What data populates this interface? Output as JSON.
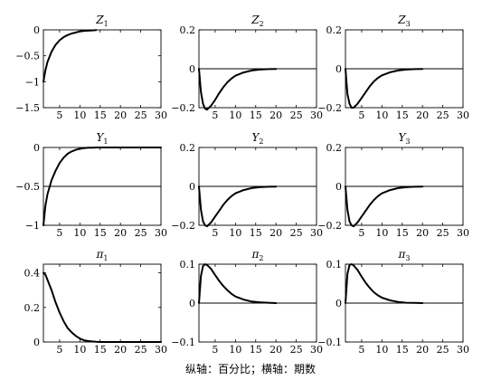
{
  "caption": "纵轴：百分比；横轴：期数",
  "chart_data": [
    {
      "type": "line",
      "title": "Z",
      "title_sub": "1",
      "xlim": [
        1,
        30
      ],
      "ylim": [
        -1.5,
        0
      ],
      "xticks": [
        5,
        10,
        15,
        20,
        25,
        30
      ],
      "yticks": [
        0,
        -0.5,
        -1,
        -1.5
      ],
      "xtick_labels": [
        "5",
        "10",
        "15",
        "20",
        "25",
        "30"
      ],
      "ytick_labels": [
        "0",
        "−0.5",
        "−1",
        "−1.5"
      ],
      "zero_line": false,
      "series": [
        {
          "x": [
            1,
            1.5,
            2,
            3,
            4,
            5,
            6,
            7,
            8,
            9,
            10,
            11,
            12,
            13,
            14
          ],
          "y": [
            -1.0,
            -0.78,
            -0.62,
            -0.42,
            -0.29,
            -0.2,
            -0.14,
            -0.1,
            -0.07,
            -0.05,
            -0.03,
            -0.02,
            -0.015,
            -0.01,
            -0.005
          ]
        }
      ]
    },
    {
      "type": "line",
      "title": "Z",
      "title_sub": "2",
      "xlim": [
        1,
        30
      ],
      "ylim": [
        -0.2,
        0.2
      ],
      "xticks": [
        5,
        10,
        15,
        20,
        25,
        30
      ],
      "yticks": [
        0.2,
        0,
        -0.2
      ],
      "xtick_labels": [
        "5",
        "10",
        "15",
        "20",
        "25",
        "30"
      ],
      "ytick_labels": [
        "0.2",
        "0",
        "−0.2"
      ],
      "zero_line": true,
      "series": [
        {
          "x": [
            1,
            1.5,
            2,
            2.5,
            3,
            4,
            5,
            6,
            7,
            8,
            9,
            10,
            12,
            14,
            16,
            18,
            20
          ],
          "y": [
            0,
            -0.12,
            -0.18,
            -0.205,
            -0.21,
            -0.19,
            -0.16,
            -0.125,
            -0.095,
            -0.07,
            -0.05,
            -0.036,
            -0.019,
            -0.009,
            -0.004,
            -0.002,
            -0.001
          ]
        }
      ]
    },
    {
      "type": "line",
      "title": "Z",
      "title_sub": "3",
      "xlim": [
        1,
        30
      ],
      "ylim": [
        -0.2,
        0.2
      ],
      "xticks": [
        5,
        10,
        15,
        20,
        25,
        30
      ],
      "yticks": [
        0.2,
        0,
        -0.2
      ],
      "xtick_labels": [
        "5",
        "10",
        "15",
        "20",
        "25",
        "30"
      ],
      "ytick_labels": [
        "0.2",
        "0",
        "−0.2"
      ],
      "zero_line": true,
      "series": [
        {
          "x": [
            1,
            1.5,
            2,
            2.5,
            3,
            4,
            5,
            6,
            7,
            8,
            9,
            10,
            12,
            14,
            16,
            18,
            20
          ],
          "y": [
            0,
            -0.13,
            -0.18,
            -0.2,
            -0.2,
            -0.18,
            -0.15,
            -0.12,
            -0.09,
            -0.065,
            -0.047,
            -0.034,
            -0.018,
            -0.009,
            -0.004,
            -0.002,
            -0.001
          ]
        }
      ]
    },
    {
      "type": "line",
      "title": "Y",
      "title_sub": "1",
      "xlim": [
        1,
        30
      ],
      "ylim": [
        -1,
        0
      ],
      "xticks": [
        5,
        10,
        15,
        20,
        25,
        30
      ],
      "yticks": [
        0,
        -0.5,
        -1
      ],
      "xtick_labels": [
        "5",
        "10",
        "15",
        "20",
        "25",
        "30"
      ],
      "ytick_labels": [
        "0",
        "−0.5",
        "−1"
      ],
      "zero_line": false,
      "ref_line": -0.5,
      "series": [
        {
          "x": [
            1,
            1.5,
            2,
            3,
            4,
            5,
            6,
            7,
            8,
            9,
            10,
            11,
            12,
            13,
            14,
            30
          ],
          "y": [
            -1.0,
            -0.75,
            -0.6,
            -0.42,
            -0.3,
            -0.2,
            -0.13,
            -0.08,
            -0.05,
            -0.03,
            -0.015,
            -0.008,
            -0.004,
            -0.002,
            0,
            0
          ]
        }
      ]
    },
    {
      "type": "line",
      "title": "Y",
      "title_sub": "2",
      "xlim": [
        1,
        30
      ],
      "ylim": [
        -0.2,
        0.2
      ],
      "xticks": [
        5,
        10,
        15,
        20,
        25,
        30
      ],
      "yticks": [
        0.2,
        0,
        -0.2
      ],
      "xtick_labels": [
        "5",
        "10",
        "15",
        "20",
        "25",
        "30"
      ],
      "ytick_labels": [
        "0.2",
        "0",
        "−0.2"
      ],
      "zero_line": true,
      "series": [
        {
          "x": [
            1,
            1.5,
            2,
            2.5,
            3,
            4,
            5,
            6,
            7,
            8,
            9,
            10,
            12,
            14,
            16,
            18,
            20
          ],
          "y": [
            0,
            -0.12,
            -0.18,
            -0.2,
            -0.205,
            -0.185,
            -0.155,
            -0.125,
            -0.095,
            -0.07,
            -0.05,
            -0.036,
            -0.019,
            -0.009,
            -0.004,
            -0.002,
            -0.001
          ]
        }
      ]
    },
    {
      "type": "line",
      "title": "Y",
      "title_sub": "3",
      "xlim": [
        1,
        30
      ],
      "ylim": [
        -0.2,
        0.2
      ],
      "xticks": [
        5,
        10,
        15,
        20,
        25,
        30
      ],
      "yticks": [
        0.2,
        0,
        -0.2
      ],
      "xtick_labels": [
        "5",
        "10",
        "15",
        "20",
        "25",
        "30"
      ],
      "ytick_labels": [
        "0.2",
        "0",
        "−0.2"
      ],
      "zero_line": true,
      "series": [
        {
          "x": [
            1,
            1.5,
            2,
            2.5,
            3,
            4,
            5,
            6,
            7,
            8,
            9,
            10,
            12,
            14,
            16,
            18,
            20
          ],
          "y": [
            0,
            -0.12,
            -0.18,
            -0.2,
            -0.205,
            -0.185,
            -0.155,
            -0.125,
            -0.095,
            -0.07,
            -0.05,
            -0.036,
            -0.019,
            -0.009,
            -0.004,
            -0.002,
            -0.001
          ]
        }
      ]
    },
    {
      "type": "line",
      "title": "π",
      "title_sub": "1",
      "xlim": [
        1,
        30
      ],
      "ylim": [
        0,
        0.45
      ],
      "xticks": [
        5,
        10,
        15,
        20,
        25,
        30
      ],
      "yticks": [
        0.4,
        0.2,
        0
      ],
      "xtick_labels": [
        "5",
        "10",
        "15",
        "20",
        "25",
        "30"
      ],
      "ytick_labels": [
        "0.4",
        "0.2",
        "0"
      ],
      "zero_line": false,
      "series": [
        {
          "x": [
            1,
            1.5,
            2,
            3,
            4,
            5,
            6,
            7,
            8,
            9,
            10,
            11,
            12,
            13,
            14,
            15,
            30
          ],
          "y": [
            0.4,
            0.39,
            0.36,
            0.3,
            0.23,
            0.17,
            0.12,
            0.08,
            0.055,
            0.035,
            0.02,
            0.01,
            0.006,
            0.003,
            0.001,
            0,
            0
          ]
        }
      ]
    },
    {
      "type": "line",
      "title": "π",
      "title_sub": "2",
      "xlim": [
        1,
        30
      ],
      "ylim": [
        -0.1,
        0.1
      ],
      "xticks": [
        5,
        10,
        15,
        20,
        25,
        30
      ],
      "yticks": [
        0.1,
        0,
        -0.1
      ],
      "xtick_labels": [
        "5",
        "10",
        "15",
        "20",
        "25",
        "30"
      ],
      "ytick_labels": [
        "0.1",
        "0",
        "−0.1"
      ],
      "zero_line": true,
      "series": [
        {
          "x": [
            1,
            1.5,
            2,
            2.5,
            3,
            4,
            5,
            6,
            7,
            8,
            9,
            10,
            12,
            14,
            16,
            18,
            20
          ],
          "y": [
            0,
            0.07,
            0.095,
            0.1,
            0.098,
            0.088,
            0.072,
            0.057,
            0.044,
            0.033,
            0.024,
            0.017,
            0.009,
            0.004,
            0.002,
            0.001,
            0
          ]
        }
      ]
    },
    {
      "type": "line",
      "title": "π",
      "title_sub": "3",
      "xlim": [
        1,
        30
      ],
      "ylim": [
        -0.1,
        0.1
      ],
      "xticks": [
        5,
        10,
        15,
        20,
        25,
        30
      ],
      "yticks": [
        0.1,
        0,
        -0.1
      ],
      "xtick_labels": [
        "5",
        "10",
        "15",
        "20",
        "25",
        "30"
      ],
      "ytick_labels": [
        "0.1",
        "0",
        "−0.1"
      ],
      "zero_line": true,
      "series": [
        {
          "x": [
            1,
            1.5,
            2,
            2.5,
            3,
            4,
            5,
            6,
            7,
            8,
            9,
            10,
            12,
            14,
            16,
            18,
            20
          ],
          "y": [
            0,
            0.075,
            0.098,
            0.1,
            0.097,
            0.085,
            0.068,
            0.052,
            0.039,
            0.028,
            0.02,
            0.014,
            0.007,
            0.003,
            0.001,
            0.0005,
            0
          ]
        }
      ]
    }
  ]
}
